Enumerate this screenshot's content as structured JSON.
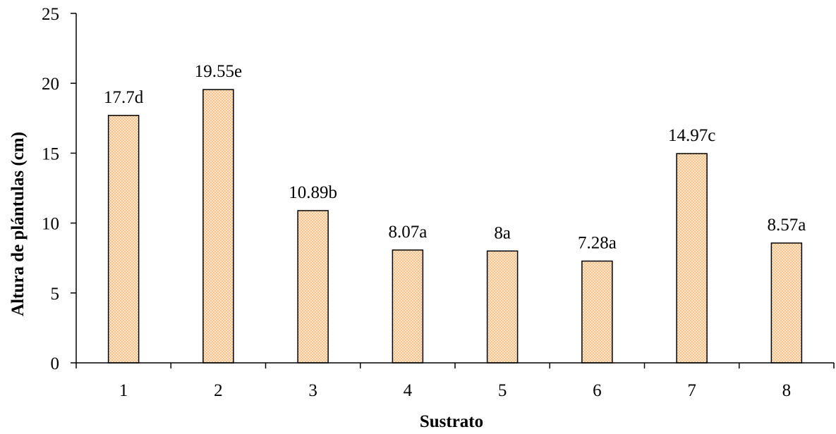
{
  "chart_data": {
    "type": "bar",
    "categories": [
      "1",
      "2",
      "3",
      "4",
      "5",
      "6",
      "7",
      "8"
    ],
    "values": [
      17.7,
      19.55,
      10.89,
      8.07,
      8,
      7.28,
      14.97,
      8.57
    ],
    "data_labels": [
      "17.7d",
      "19.55e",
      "10.89b",
      "8.07a",
      "8a",
      "7.28a",
      "14.97c",
      "8.57a"
    ],
    "title": "",
    "xlabel": "Sustrato",
    "ylabel": "Altura de plántulas (cm)",
    "ylim": [
      0,
      25
    ],
    "yticks": [
      "0",
      "5",
      "10",
      "15",
      "20",
      "25"
    ],
    "grid": false,
    "legend": "none",
    "bar_fill_color": "#ffe6c8",
    "bar_dot_color": "#e8964a",
    "bar_edge_color": "#000000"
  }
}
